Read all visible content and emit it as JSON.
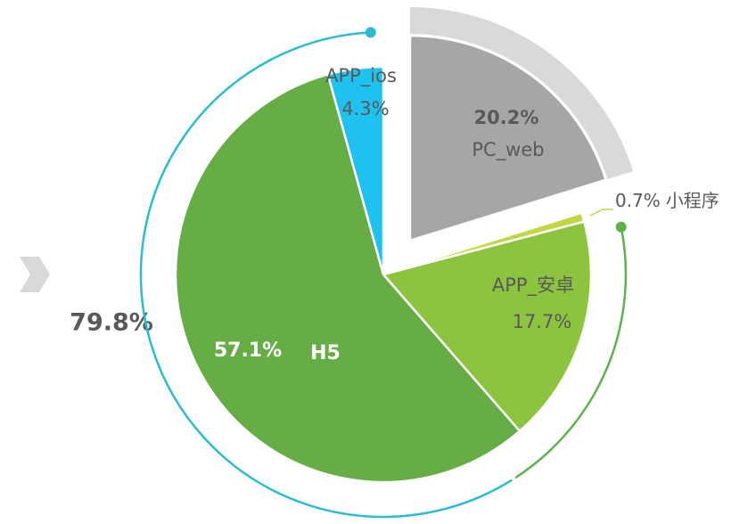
{
  "chart_data": {
    "type": "pie",
    "labels": [
      "PC_web",
      "小程序",
      "APP_安卓",
      "H5",
      "APP_ios"
    ],
    "values": [
      20.2,
      0.7,
      17.7,
      57.1,
      4.3
    ],
    "value_labels": [
      "20.2%",
      "0.7%",
      "17.7%",
      "57.1%",
      "4.3%"
    ],
    "colors": [
      "#a6a6a6",
      "#c2d641",
      "#8cc43f",
      "#67ad45",
      "#1fc2ee"
    ],
    "annotation": "79.8%"
  }
}
